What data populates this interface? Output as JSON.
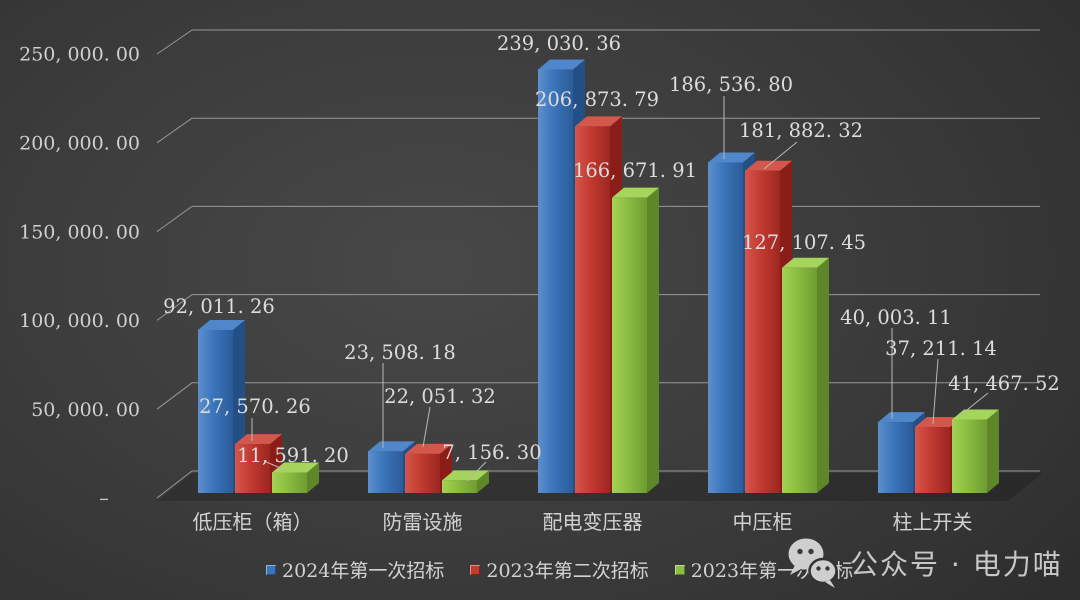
{
  "watermark": {
    "icon": "wechat-icon",
    "text": "公众号 · 电力喵"
  },
  "chart_data": {
    "type": "bar",
    "style": "3d-clustered-column",
    "title": "",
    "xlabel": "",
    "ylabel": "",
    "background": "dark-gray-gradient",
    "gridlines": true,
    "legend_position": "bottom",
    "categories": [
      "低压柜（箱）",
      "防雷设施",
      "配电变压器",
      "中压柜",
      "柱上开关"
    ],
    "series": [
      {
        "name": "2024年第一次招标",
        "values": [
          92011.26,
          23508.18,
          239030.36,
          186536.8,
          40003.11
        ],
        "labels": [
          "92, 011. 26",
          "23, 508. 18",
          "239, 030. 36",
          "186, 536. 80",
          "40, 003. 11"
        ],
        "colors": {
          "front": "#3a74b9",
          "front_light": "#5b90cd",
          "front_dark": "#2b5c99",
          "top": "#4f87ca",
          "side": "#234f87"
        }
      },
      {
        "name": "2023年第二次招标",
        "values": [
          27570.26,
          22051.32,
          206873.79,
          181882.32,
          37211.14
        ],
        "labels": [
          "27, 570. 26",
          "22, 051. 32",
          "206, 873. 79",
          "181, 882. 32",
          "37, 211. 14"
        ],
        "colors": {
          "front": "#c23a31",
          "front_light": "#d5564a",
          "front_dark": "#9c2721",
          "top": "#d4574c",
          "side": "#8a1d18"
        }
      },
      {
        "name": "2023年第一次招标",
        "values": [
          11591.2,
          7156.3,
          166671.91,
          127107.45,
          41467.52
        ],
        "labels": [
          "11, 591. 20",
          "7, 156. 30",
          "166, 671. 91",
          "127, 107. 45",
          "41, 467. 52"
        ],
        "colors": {
          "front": "#8abd42",
          "front_light": "#a3d254",
          "front_dark": "#6e9c32",
          "top": "#a5d55b",
          "side": "#5d8728"
        }
      }
    ],
    "y_axis": {
      "max": 250000,
      "tick_values": [
        0,
        50000,
        100000,
        150000,
        200000,
        250000
      ],
      "ticks": [
        "–",
        "50, 000. 00",
        "100, 000. 00",
        "150, 000. 00",
        "200, 000. 00",
        "250, 000. 00"
      ]
    },
    "colors": {
      "grid": "#a8a8a8",
      "leader": "#b8b8b8",
      "text": "#d2d2d2"
    }
  }
}
